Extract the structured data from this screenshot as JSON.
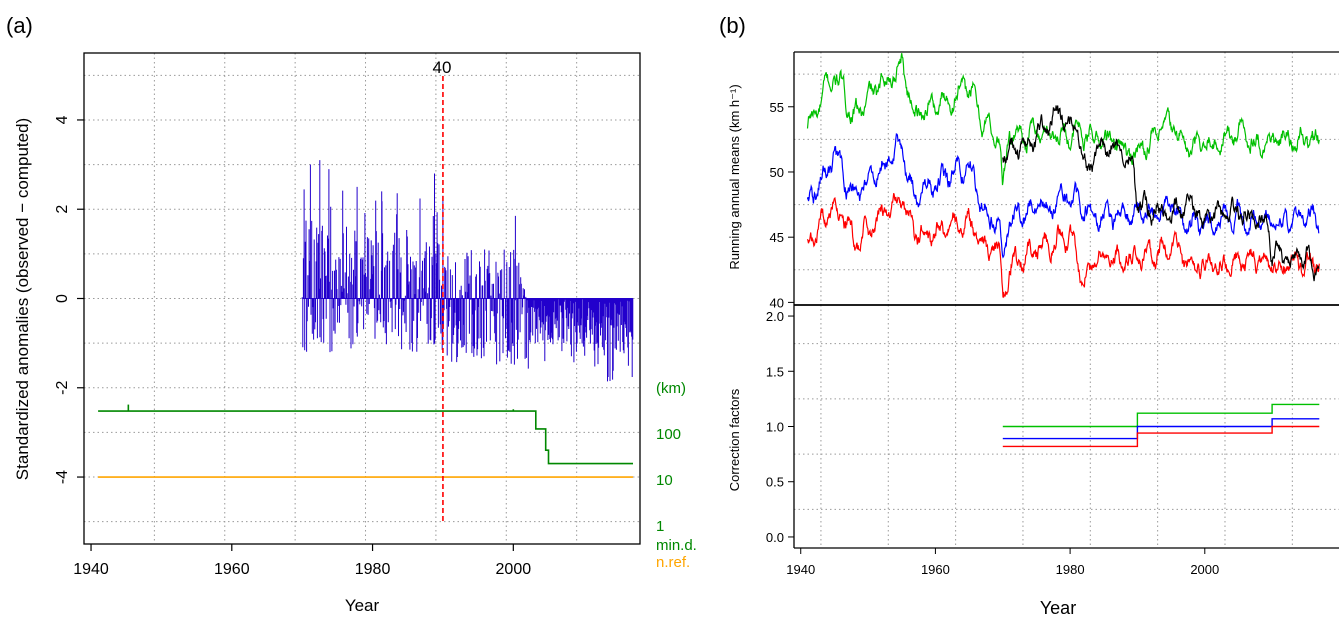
{
  "panels": {
    "a": {
      "label": "(a)"
    },
    "b": {
      "label": "(b)"
    }
  },
  "colors": {
    "anomaly": "#2200cc",
    "mind": "#008800",
    "nref": "#ffa500",
    "break_line": "#ff0000",
    "green": "#00c000",
    "blue": "#0000ff",
    "red": "#ff0000",
    "black": "#000000",
    "grid": "#9a9a9a"
  },
  "chart_data": [
    {
      "panel": "a",
      "type": "line",
      "xlabel": "Year",
      "ylabel": "Standardized anomalies (observed − computed)",
      "xlim": [
        1939,
        2018
      ],
      "ylim": [
        -5.5,
        5.5
      ],
      "x_ticks": [
        1940,
        1960,
        1980,
        2000
      ],
      "y_ticks": [
        -4,
        -2,
        0,
        2,
        4
      ],
      "grid": true,
      "right_axis": {
        "unit_label": "(km)",
        "tick_labels": [
          "100",
          "10",
          "1"
        ],
        "label_mind": "min.d.",
        "label_nref": "n.ref."
      },
      "break": {
        "year": 1990,
        "label": "40"
      },
      "anomaly_series": {
        "name": "",
        "x_start": 1970,
        "x_end": 2017,
        "max": 3.1,
        "min": -1.9
      },
      "min_distance_km": {
        "steps": [
          {
            "x": 1941,
            "km": 300
          },
          {
            "x": 2003.2,
            "km": 300
          },
          {
            "x": 2003.2,
            "km": 120
          },
          {
            "x": 2004.6,
            "km": 120
          },
          {
            "x": 2004.6,
            "km": 40
          },
          {
            "x": 2005,
            "km": 40
          },
          {
            "x": 2005,
            "km": 20
          },
          {
            "x": 2017,
            "km": 20
          }
        ],
        "spikes": [
          {
            "x": 1945.3,
            "km": 420
          },
          {
            "x": 2000,
            "km": 330
          }
        ]
      },
      "n_ref": {
        "x": [
          1941,
          2017
        ],
        "value": 10
      }
    },
    {
      "panel": "b-top",
      "type": "line",
      "xlabel": "",
      "ylabel": "Running annual means (km h⁻¹)",
      "xlim": [
        1939,
        2018
      ],
      "ylim": [
        39.8,
        59.2
      ],
      "y_ticks": [
        40,
        45,
        50,
        55
      ],
      "grid": true,
      "series": [
        {
          "color": "green",
          "base": [
            [
              1941,
              53.3
            ],
            [
              1945,
              57.5
            ],
            [
              1948,
              54.2
            ],
            [
              1955,
              58.5
            ],
            [
              1957,
              54.4
            ],
            [
              1965,
              56.5
            ],
            [
              1967,
              54
            ],
            [
              1969.5,
              52.5
            ],
            [
              1970,
              48.5
            ],
            [
              1971,
              53
            ],
            [
              1980,
              53
            ],
            [
              1985,
              52.5
            ],
            [
              1989.5,
              51.5
            ],
            [
              1995,
              53.5
            ],
            [
              1998,
              51.5
            ],
            [
              2005,
              53
            ],
            [
              2010,
              52.3
            ],
            [
              2017,
              52.5
            ]
          ]
        },
        {
          "color": "blue",
          "base": [
            [
              1941,
              47.4
            ],
            [
              1945,
              51
            ],
            [
              1948,
              48
            ],
            [
              1955,
              52
            ],
            [
              1957,
              48
            ],
            [
              1965,
              50.5
            ],
            [
              1967,
              47.5
            ],
            [
              1969.5,
              46.5
            ],
            [
              1970,
              43.5
            ],
            [
              1971,
              46.5
            ],
            [
              1980,
              48
            ],
            [
              1985,
              46.5
            ],
            [
              1989.5,
              46.5
            ],
            [
              1995,
              47.5
            ],
            [
              1998,
              45.5
            ],
            [
              2005,
              46.5
            ],
            [
              2010,
              46
            ],
            [
              2017,
              46.5
            ]
          ]
        },
        {
          "color": "red",
          "base": [
            [
              1941,
              44.3
            ],
            [
              1945,
              47.5
            ],
            [
              1948,
              44.5
            ],
            [
              1955,
              48
            ],
            [
              1957,
              45
            ],
            [
              1965,
              46
            ],
            [
              1967,
              44.3
            ],
            [
              1969.5,
              43.5
            ],
            [
              1970,
              40.5
            ],
            [
              1971,
              43
            ],
            [
              1980,
              45.5
            ],
            [
              1982,
              42
            ],
            [
              1985,
              43
            ],
            [
              1989.5,
              43.5
            ],
            [
              1995,
              44
            ],
            [
              1998,
              43
            ],
            [
              2005,
              43.2
            ],
            [
              2010,
              43
            ],
            [
              2017,
              43
            ]
          ]
        },
        {
          "color": "black",
          "base": [
            [
              1970,
              51.5
            ],
            [
              1975,
              52.5
            ],
            [
              1978,
              54
            ],
            [
              1981,
              54
            ],
            [
              1982.5,
              50.5
            ],
            [
              1985,
              52.5
            ],
            [
              1989.5,
              51
            ],
            [
              1990,
              47.5
            ],
            [
              1995,
              46.5
            ],
            [
              1998,
              48
            ],
            [
              2000,
              46
            ],
            [
              2005,
              47
            ],
            [
              2009.5,
              46
            ],
            [
              2010,
              43.5
            ],
            [
              2017,
              43
            ]
          ]
        }
      ]
    },
    {
      "panel": "b-bottom",
      "type": "line",
      "xlabel": "Year",
      "ylabel": "Correction factors",
      "xlim": [
        1939,
        2018
      ],
      "ylim": [
        -0.1,
        2.1
      ],
      "x_ticks": [
        1940,
        1960,
        1980,
        2000
      ],
      "y_ticks": [
        0.0,
        0.5,
        1.0,
        1.5,
        2.0
      ],
      "y_tick_labels": [
        "0.0",
        "0.5",
        "1.0",
        "1.5",
        "2.0"
      ],
      "grid": true,
      "series": [
        {
          "color": "green",
          "steps": [
            [
              1970,
              1.0
            ],
            [
              1990,
              1.0
            ],
            [
              1990,
              1.12
            ],
            [
              2010,
              1.12
            ],
            [
              2010,
              1.2
            ],
            [
              2017,
              1.2
            ]
          ]
        },
        {
          "color": "blue",
          "steps": [
            [
              1970,
              0.89
            ],
            [
              1990,
              0.89
            ],
            [
              1990,
              1.0
            ],
            [
              2010,
              1.0
            ],
            [
              2010,
              1.07
            ],
            [
              2017,
              1.07
            ]
          ]
        },
        {
          "color": "red",
          "steps": [
            [
              1970,
              0.82
            ],
            [
              1990,
              0.82
            ],
            [
              1990,
              0.94
            ],
            [
              2010,
              0.94
            ],
            [
              2010,
              1.0
            ],
            [
              2017,
              1.0
            ]
          ]
        }
      ]
    }
  ]
}
